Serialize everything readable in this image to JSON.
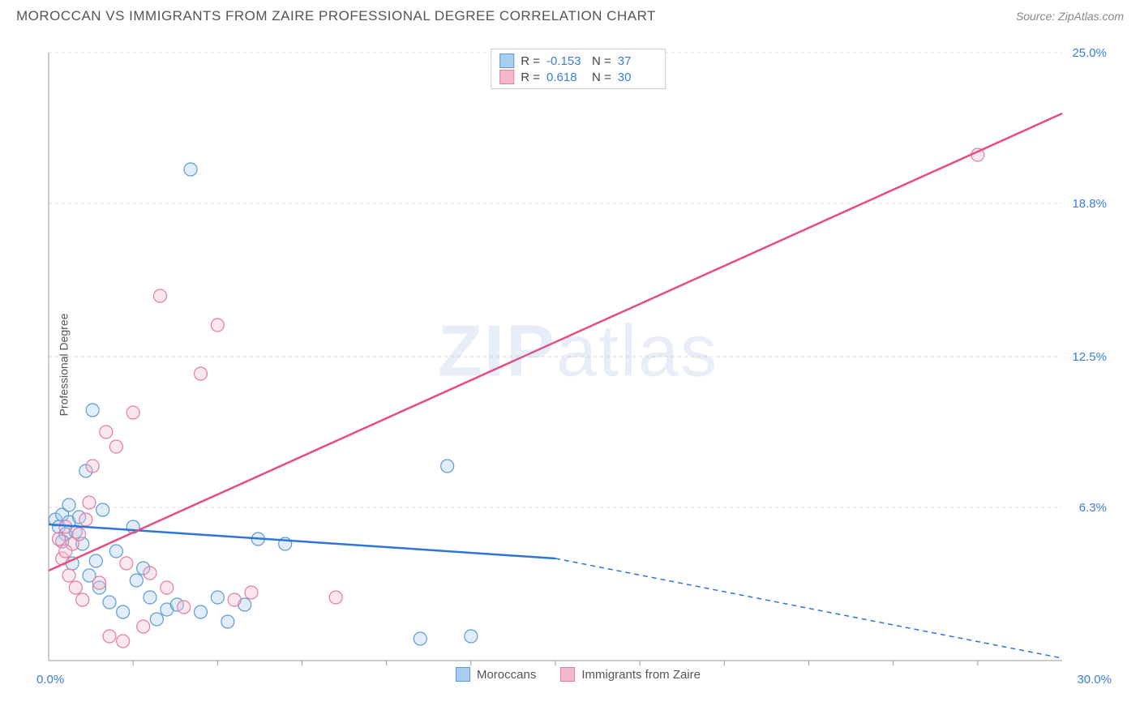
{
  "header": {
    "title": "MOROCCAN VS IMMIGRANTS FROM ZAIRE PROFESSIONAL DEGREE CORRELATION CHART",
    "source": "Source: ZipAtlas.com"
  },
  "watermark": {
    "zip": "ZIP",
    "atlas": "atlas"
  },
  "chart": {
    "type": "scatter-with-regression",
    "y_axis_label": "Professional Degree",
    "xlim": [
      0,
      30
    ],
    "ylim": [
      0,
      25
    ],
    "x_ticks_minor_step": 2.5,
    "y_grid_values": [
      6.3,
      12.5,
      18.8,
      25.0
    ],
    "y_tick_labels": [
      "6.3%",
      "12.5%",
      "18.8%",
      "25.0%"
    ],
    "x_origin_label": "0.0%",
    "x_max_label": "30.0%",
    "background_color": "#ffffff",
    "grid_color": "#dddddd",
    "grid_dash": "4,4",
    "axis_color": "#999999",
    "tick_label_color": "#3b7dd8",
    "marker_radius": 8,
    "marker_stroke_width": 1.2,
    "marker_fill_opacity": 0.35,
    "trend_line_width": 2.5,
    "series": [
      {
        "name": "Moroccans",
        "color_stroke": "#5b9bd5",
        "color_fill": "#a9cdee",
        "trend_color": "#2e75d6",
        "trend_start": [
          0,
          5.6
        ],
        "trend_solid_end": [
          15,
          4.2
        ],
        "trend_dash_end": [
          30,
          0.1
        ],
        "points": [
          [
            0.2,
            5.8
          ],
          [
            0.3,
            5.5
          ],
          [
            0.4,
            6.0
          ],
          [
            0.5,
            5.2
          ],
          [
            0.6,
            5.7
          ],
          [
            0.7,
            4.0
          ],
          [
            0.8,
            5.3
          ],
          [
            0.9,
            5.9
          ],
          [
            1.0,
            4.8
          ],
          [
            1.1,
            7.8
          ],
          [
            1.2,
            3.5
          ],
          [
            1.3,
            10.3
          ],
          [
            1.5,
            3.0
          ],
          [
            1.6,
            6.2
          ],
          [
            1.8,
            2.4
          ],
          [
            2.0,
            4.5
          ],
          [
            2.2,
            2.0
          ],
          [
            2.5,
            5.5
          ],
          [
            2.8,
            3.8
          ],
          [
            3.0,
            2.6
          ],
          [
            3.2,
            1.7
          ],
          [
            3.5,
            2.1
          ],
          [
            3.8,
            2.3
          ],
          [
            4.2,
            20.2
          ],
          [
            4.5,
            2.0
          ],
          [
            5.0,
            2.6
          ],
          [
            5.3,
            1.6
          ],
          [
            5.8,
            2.3
          ],
          [
            6.2,
            5.0
          ],
          [
            7.0,
            4.8
          ],
          [
            11.0,
            0.9
          ],
          [
            11.8,
            8.0
          ],
          [
            12.5,
            1.0
          ],
          [
            0.4,
            4.9
          ],
          [
            0.6,
            6.4
          ],
          [
            1.4,
            4.1
          ],
          [
            2.6,
            3.3
          ]
        ]
      },
      {
        "name": "Immigrants from Zaire",
        "color_stroke": "#e77ba0",
        "color_fill": "#f4b9ce",
        "trend_color": "#e84d7e",
        "trend_start": [
          0,
          3.7
        ],
        "trend_solid_end": [
          30,
          22.5
        ],
        "trend_dash_end": null,
        "points": [
          [
            0.3,
            5.0
          ],
          [
            0.4,
            4.2
          ],
          [
            0.5,
            5.5
          ],
          [
            0.6,
            3.5
          ],
          [
            0.7,
            4.8
          ],
          [
            0.8,
            3.0
          ],
          [
            0.9,
            5.2
          ],
          [
            1.0,
            2.5
          ],
          [
            1.1,
            5.8
          ],
          [
            1.3,
            8.0
          ],
          [
            1.5,
            3.2
          ],
          [
            1.7,
            9.4
          ],
          [
            1.8,
            1.0
          ],
          [
            2.0,
            8.8
          ],
          [
            2.2,
            0.8
          ],
          [
            2.5,
            10.2
          ],
          [
            2.8,
            1.4
          ],
          [
            3.0,
            3.6
          ],
          [
            3.3,
            15.0
          ],
          [
            3.5,
            3.0
          ],
          [
            4.0,
            2.2
          ],
          [
            4.5,
            11.8
          ],
          [
            5.0,
            13.8
          ],
          [
            5.5,
            2.5
          ],
          [
            6.0,
            2.8
          ],
          [
            8.5,
            2.6
          ],
          [
            27.5,
            20.8
          ],
          [
            0.5,
            4.5
          ],
          [
            1.2,
            6.5
          ],
          [
            2.3,
            4.0
          ]
        ]
      }
    ],
    "stats_box": {
      "rows": [
        {
          "swatch_fill": "#a9cdee",
          "swatch_stroke": "#5b9bd5",
          "r_label": "R =",
          "r_val": "-0.153",
          "n_label": "N =",
          "n_val": "37"
        },
        {
          "swatch_fill": "#f4b9ce",
          "swatch_stroke": "#e77ba0",
          "r_label": "R =",
          "r_val": "0.618",
          "n_label": "N =",
          "n_val": "30"
        }
      ]
    },
    "bottom_legend": [
      {
        "swatch_fill": "#a9cdee",
        "swatch_stroke": "#5b9bd5",
        "label": "Moroccans"
      },
      {
        "swatch_fill": "#f4b9ce",
        "swatch_stroke": "#e77ba0",
        "label": "Immigrants from Zaire"
      }
    ]
  }
}
